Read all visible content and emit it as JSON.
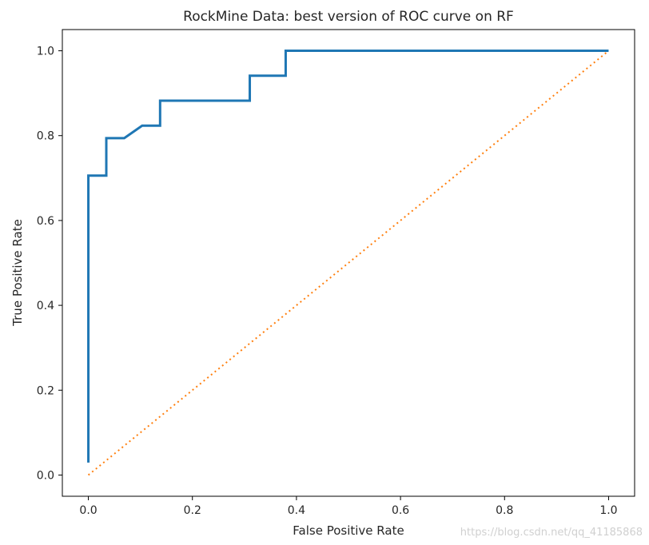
{
  "chart_data": {
    "type": "line",
    "title": "RockMine Data: best version of ROC curve on RF",
    "xlabel": "False Positive Rate",
    "ylabel": "True Positive Rate",
    "xlim": [
      -0.05,
      1.05
    ],
    "ylim": [
      -0.05,
      1.05
    ],
    "xticks": [
      "0.0",
      "0.2",
      "0.4",
      "0.6",
      "0.8",
      "1.0"
    ],
    "yticks": [
      "0.0",
      "0.2",
      "0.4",
      "0.6",
      "0.8",
      "1.0"
    ],
    "grid": false,
    "series": [
      {
        "color": "#1f77b4",
        "style": "solid",
        "x": [
          0.0,
          0.0,
          0.0345,
          0.0345,
          0.069,
          0.1034,
          0.1379,
          0.1379,
          0.3103,
          0.3103,
          0.3793,
          0.3793,
          1.0
        ],
        "y": [
          0.0294,
          0.7059,
          0.7059,
          0.7941,
          0.7941,
          0.8235,
          0.8235,
          0.8824,
          0.8824,
          0.9412,
          0.9412,
          1.0,
          1.0
        ]
      },
      {
        "color": "#ff7f0e",
        "style": "dotted",
        "x": [
          0.0,
          1.0
        ],
        "y": [
          0.0,
          1.0
        ]
      }
    ]
  },
  "watermark": "https://blog.csdn.net/qq_41185868"
}
